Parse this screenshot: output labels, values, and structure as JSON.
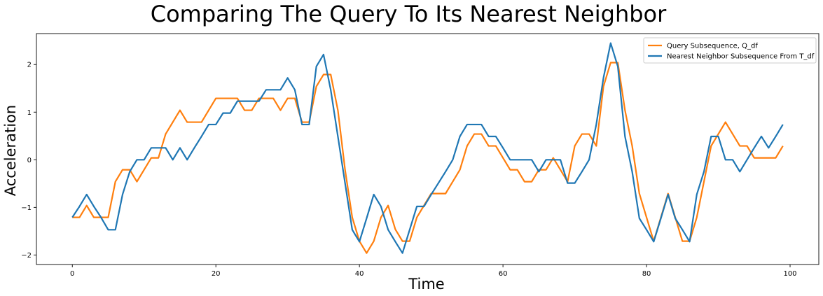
{
  "chart_data": {
    "type": "line",
    "title": "Comparing The Query To Its Nearest Neighbor",
    "xlabel": "Time",
    "ylabel": "Acceleration",
    "xlim": [
      -5,
      104
    ],
    "ylim": [
      -2.2,
      2.65
    ],
    "xticks": [
      0,
      20,
      40,
      60,
      80,
      100
    ],
    "yticks": [
      -2,
      -1,
      0,
      1,
      2
    ],
    "grid": false,
    "legend_position": "top-right",
    "x": [
      0,
      1,
      2,
      3,
      4,
      5,
      6,
      7,
      8,
      9,
      10,
      11,
      12,
      13,
      14,
      15,
      16,
      17,
      18,
      19,
      20,
      21,
      22,
      23,
      24,
      25,
      26,
      27,
      28,
      29,
      30,
      31,
      32,
      33,
      34,
      35,
      36,
      37,
      38,
      39,
      40,
      41,
      42,
      43,
      44,
      45,
      46,
      47,
      48,
      49,
      50,
      51,
      52,
      53,
      54,
      55,
      56,
      57,
      58,
      59,
      60,
      61,
      62,
      63,
      64,
      65,
      66,
      67,
      68,
      69,
      70,
      71,
      72,
      73,
      74,
      75,
      76,
      77,
      78,
      79,
      80,
      81,
      82,
      83,
      84,
      85,
      86,
      87,
      88,
      89,
      90,
      91,
      92,
      93,
      94,
      95,
      96,
      97,
      98,
      99
    ],
    "series": [
      {
        "name": "Query Subsequence, Q_df",
        "color": "#ff7f0e",
        "values": [
          -1.21,
          -1.21,
          -0.96,
          -1.21,
          -1.21,
          -1.21,
          -0.46,
          -0.21,
          -0.21,
          -0.46,
          -0.21,
          0.04,
          0.04,
          0.54,
          0.79,
          1.04,
          0.79,
          0.79,
          0.79,
          1.04,
          1.29,
          1.29,
          1.29,
          1.29,
          1.04,
          1.04,
          1.29,
          1.29,
          1.29,
          1.04,
          1.29,
          1.29,
          0.79,
          0.79,
          1.54,
          1.79,
          1.79,
          1.04,
          -0.21,
          -1.21,
          -1.71,
          -1.96,
          -1.71,
          -1.21,
          -0.96,
          -1.46,
          -1.71,
          -1.71,
          -1.21,
          -0.96,
          -0.71,
          -0.71,
          -0.71,
          -0.46,
          -0.21,
          0.29,
          0.54,
          0.54,
          0.29,
          0.29,
          0.04,
          -0.21,
          -0.21,
          -0.46,
          -0.46,
          -0.21,
          -0.21,
          0.04,
          -0.21,
          -0.46,
          0.29,
          0.54,
          0.54,
          0.29,
          1.54,
          2.04,
          2.04,
          1.04,
          0.29,
          -0.71,
          -1.21,
          -1.71,
          -1.21,
          -0.71,
          -1.21,
          -1.71,
          -1.71,
          -1.21,
          -0.46,
          0.29,
          0.54,
          0.79,
          0.54,
          0.29,
          0.29,
          0.04,
          0.04,
          0.04,
          0.04,
          0.29
        ]
      },
      {
        "name": "Nearest Neighbor Subsequence From T_df",
        "color": "#1f77b4",
        "values": [
          -1.21,
          -0.98,
          -0.73,
          -0.98,
          -1.21,
          -1.47,
          -1.47,
          -0.73,
          -0.25,
          0.0,
          0.0,
          0.25,
          0.25,
          0.25,
          0.0,
          0.25,
          0.0,
          0.25,
          0.49,
          0.74,
          0.74,
          0.98,
          0.98,
          1.23,
          1.23,
          1.23,
          1.23,
          1.47,
          1.47,
          1.47,
          1.72,
          1.47,
          0.74,
          0.74,
          1.96,
          2.21,
          1.47,
          0.49,
          -0.49,
          -1.47,
          -1.72,
          -1.23,
          -0.73,
          -0.98,
          -1.47,
          -1.72,
          -1.96,
          -1.47,
          -0.98,
          -0.98,
          -0.73,
          -0.49,
          -0.25,
          0.0,
          0.49,
          0.74,
          0.74,
          0.74,
          0.49,
          0.49,
          0.25,
          0.0,
          0.0,
          0.0,
          0.0,
          -0.25,
          0.0,
          0.0,
          0.0,
          -0.49,
          -0.49,
          -0.25,
          0.0,
          0.74,
          1.72,
          2.45,
          1.96,
          0.49,
          -0.25,
          -1.23,
          -1.47,
          -1.72,
          -1.23,
          -0.73,
          -1.23,
          -1.47,
          -1.72,
          -0.73,
          -0.25,
          0.49,
          0.49,
          0.0,
          0.0,
          -0.25,
          0.0,
          0.25,
          0.49,
          0.25,
          0.49,
          0.74
        ]
      }
    ]
  }
}
